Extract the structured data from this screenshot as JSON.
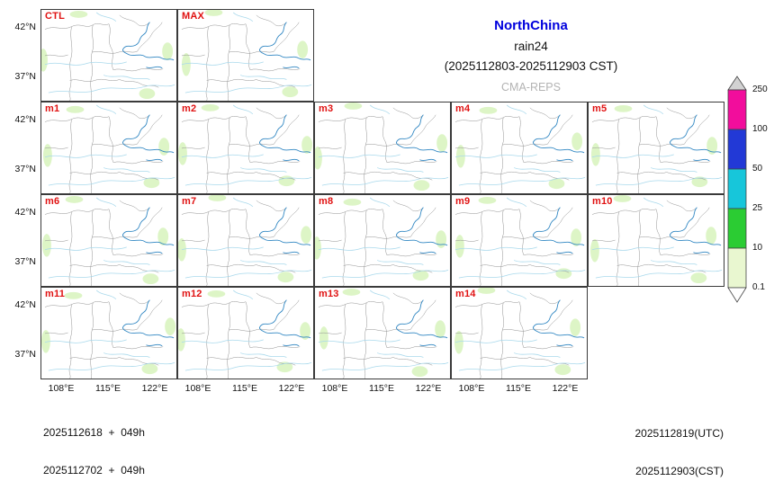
{
  "title": {
    "region": "NorthChina",
    "variable": "rain24",
    "period": "(2025112803-2025112903 CST)",
    "model": "CMA-REPS"
  },
  "panels": [
    "CTL",
    "MAX",
    "m1",
    "m2",
    "m3",
    "m4",
    "m5",
    "m6",
    "m7",
    "m8",
    "m9",
    "m10",
    "m11",
    "m12",
    "m13",
    "m14"
  ],
  "axes": {
    "lat_ticks": [
      "42°N",
      "37°N"
    ],
    "lon_ticks": [
      "108°E",
      "115°E",
      "122°E"
    ]
  },
  "colorbar": {
    "tick_labels": [
      "250",
      "100",
      "50",
      "25",
      "10",
      "0.1"
    ],
    "colors": [
      "#d2d2d2",
      "#f20d9c",
      "#2239d6",
      "#17c6da",
      "#2bcc33",
      "#e9f7d0",
      "#ffffff"
    ]
  },
  "map_colors": {
    "boundary": "#8f8f8f",
    "river": "#a9d9ec",
    "coast": "#2f86c2",
    "light_rain_patch": "#ddf5c6"
  },
  "footer": {
    "left1": "2025112618  +  049h",
    "left2": "2025112702  +  049h",
    "right1": "2025112819(UTC)",
    "right2": "2025112903(CST)"
  }
}
